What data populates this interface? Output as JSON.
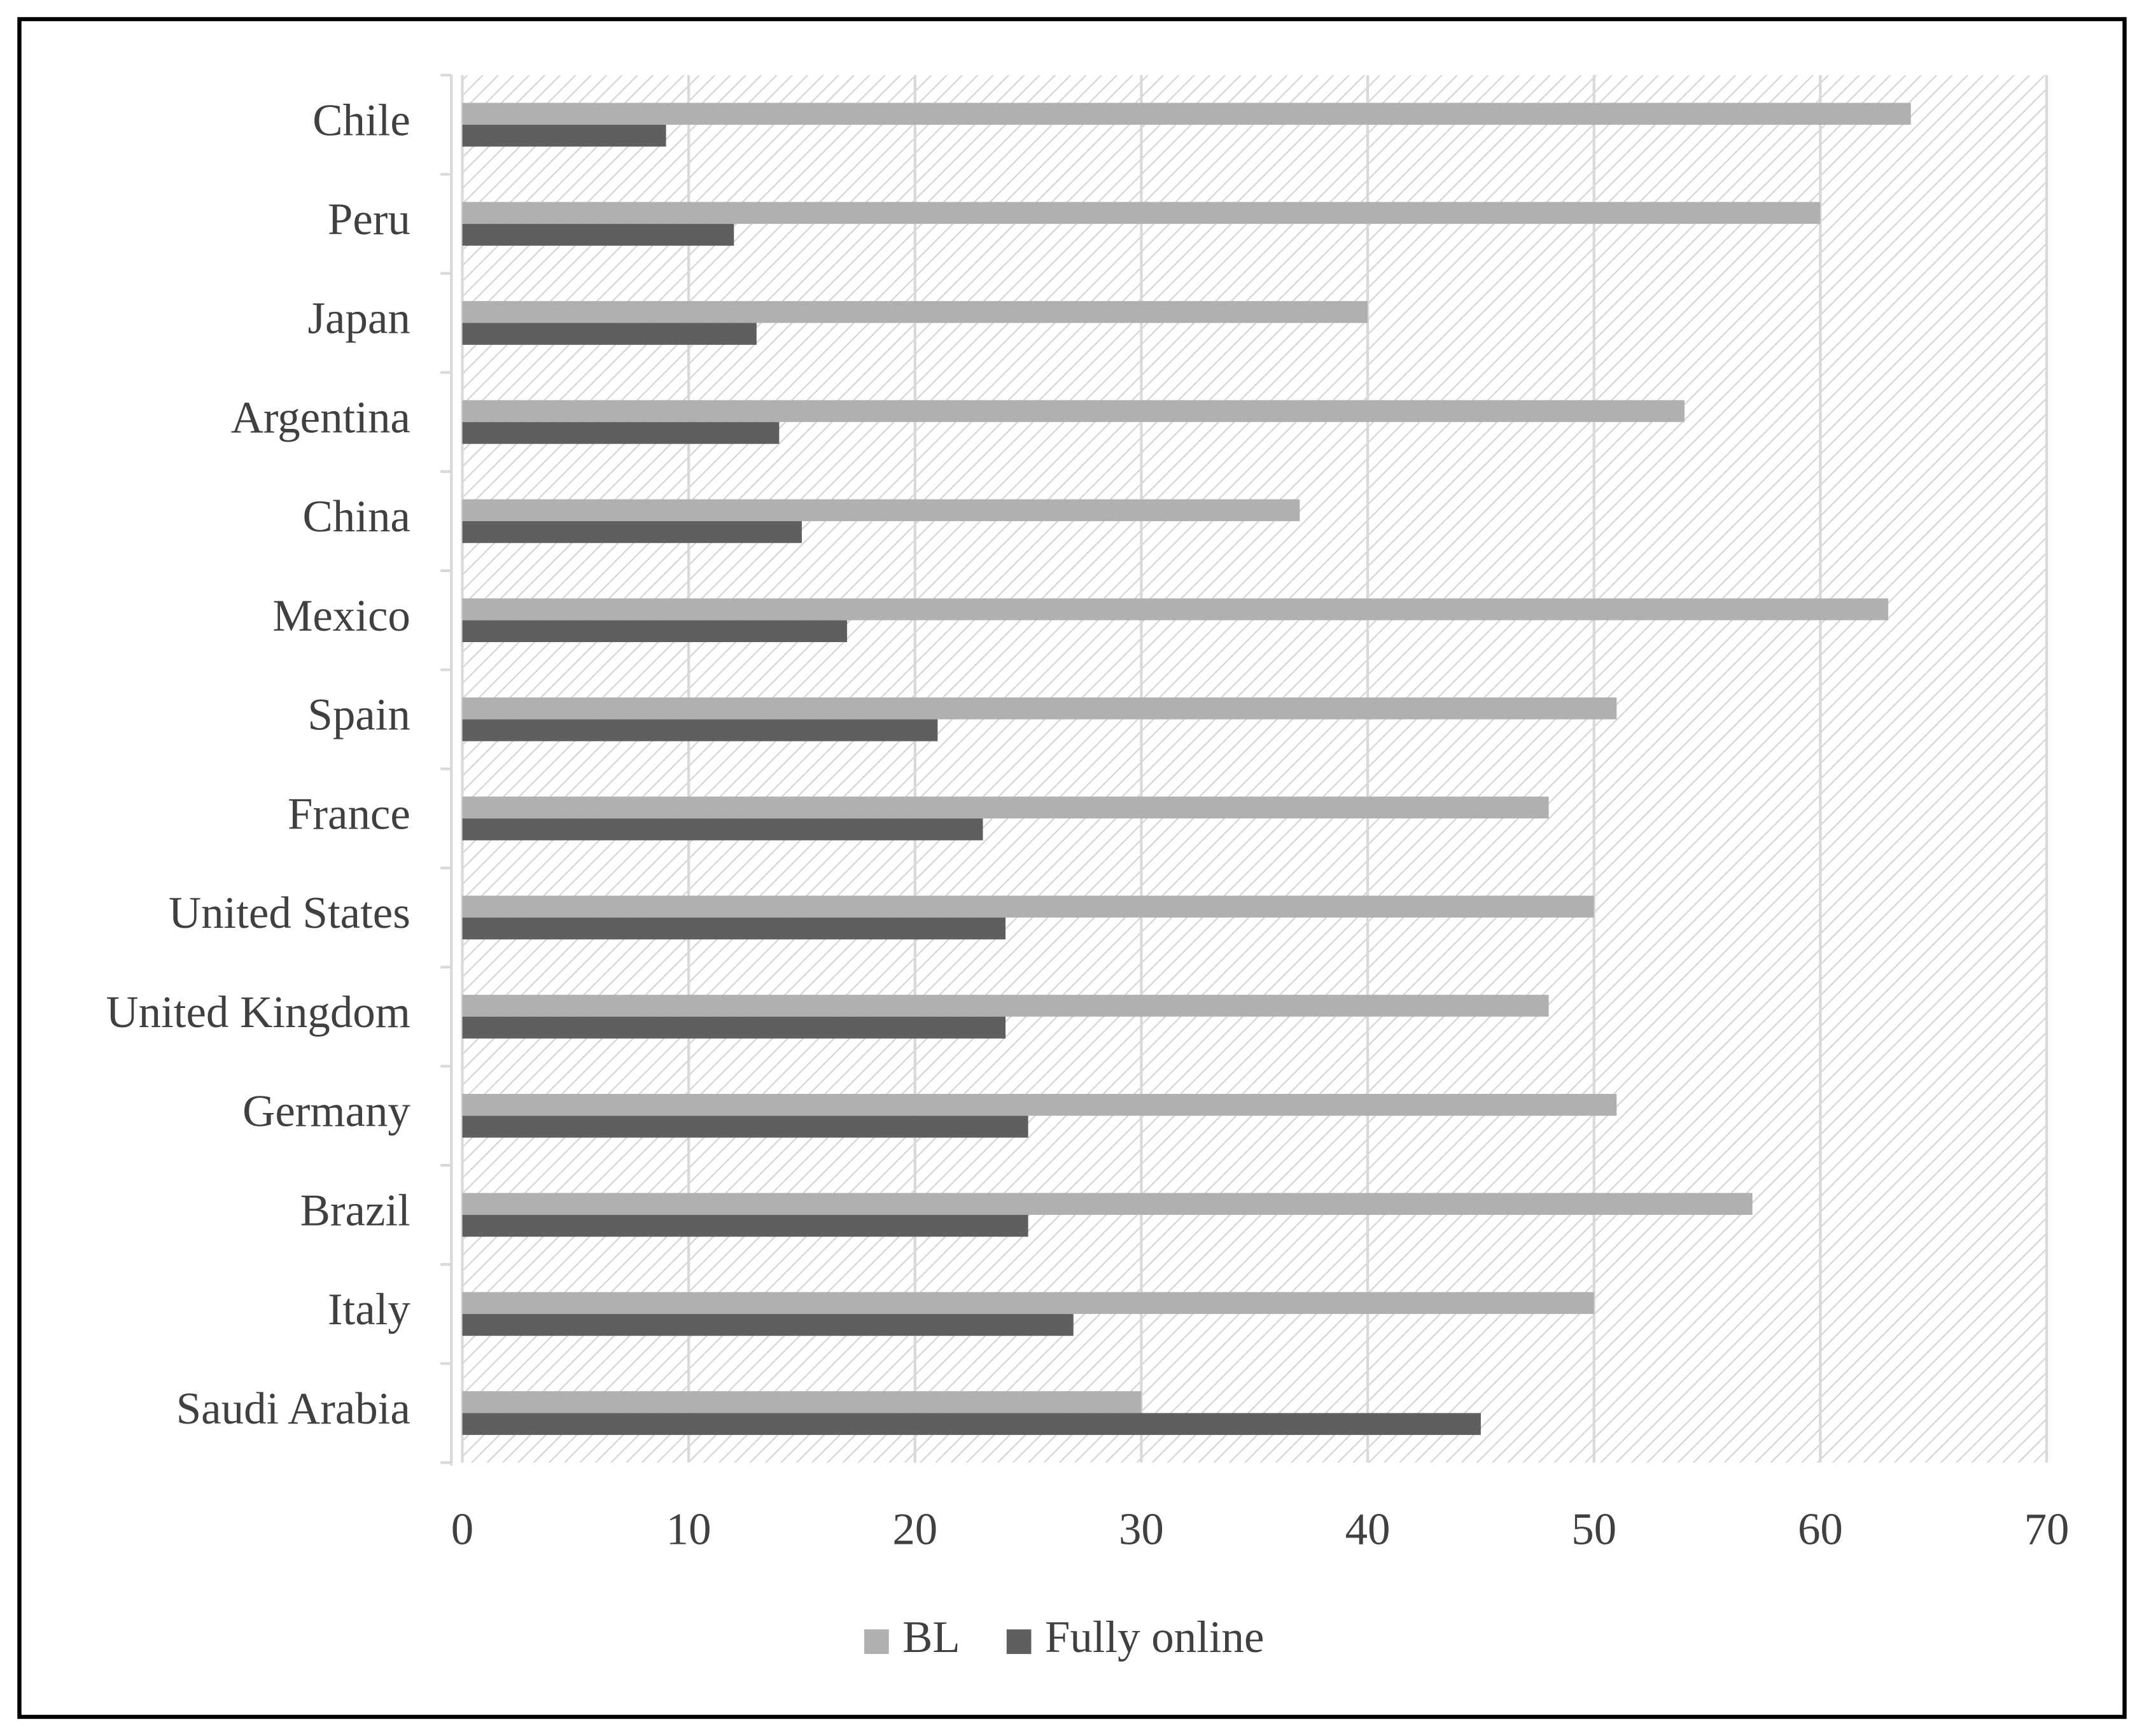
{
  "chart_data": {
    "type": "bar",
    "orientation": "horizontal",
    "categories": [
      "Chile",
      "Peru",
      "Japan",
      "Argentina",
      "China",
      "Mexico",
      "Spain",
      "France",
      "United States",
      "United Kingdom",
      "Germany",
      "Brazil",
      "Italy",
      "Saudi Arabia"
    ],
    "series": [
      {
        "name": "BL",
        "color": "#b0b0b0",
        "values": [
          64,
          60,
          40,
          54,
          37,
          63,
          51,
          48,
          50,
          48,
          51,
          57,
          50,
          30
        ]
      },
      {
        "name": "Fully online",
        "color": "#5f5f5f",
        "values": [
          9,
          12,
          13,
          14,
          15,
          17,
          21,
          23,
          24,
          24,
          25,
          25,
          27,
          45
        ]
      }
    ],
    "xlim": [
      0,
      70
    ],
    "xticks": [
      0,
      10,
      20,
      30,
      40,
      50,
      60,
      70
    ],
    "grid": true,
    "legend": "bottom"
  }
}
